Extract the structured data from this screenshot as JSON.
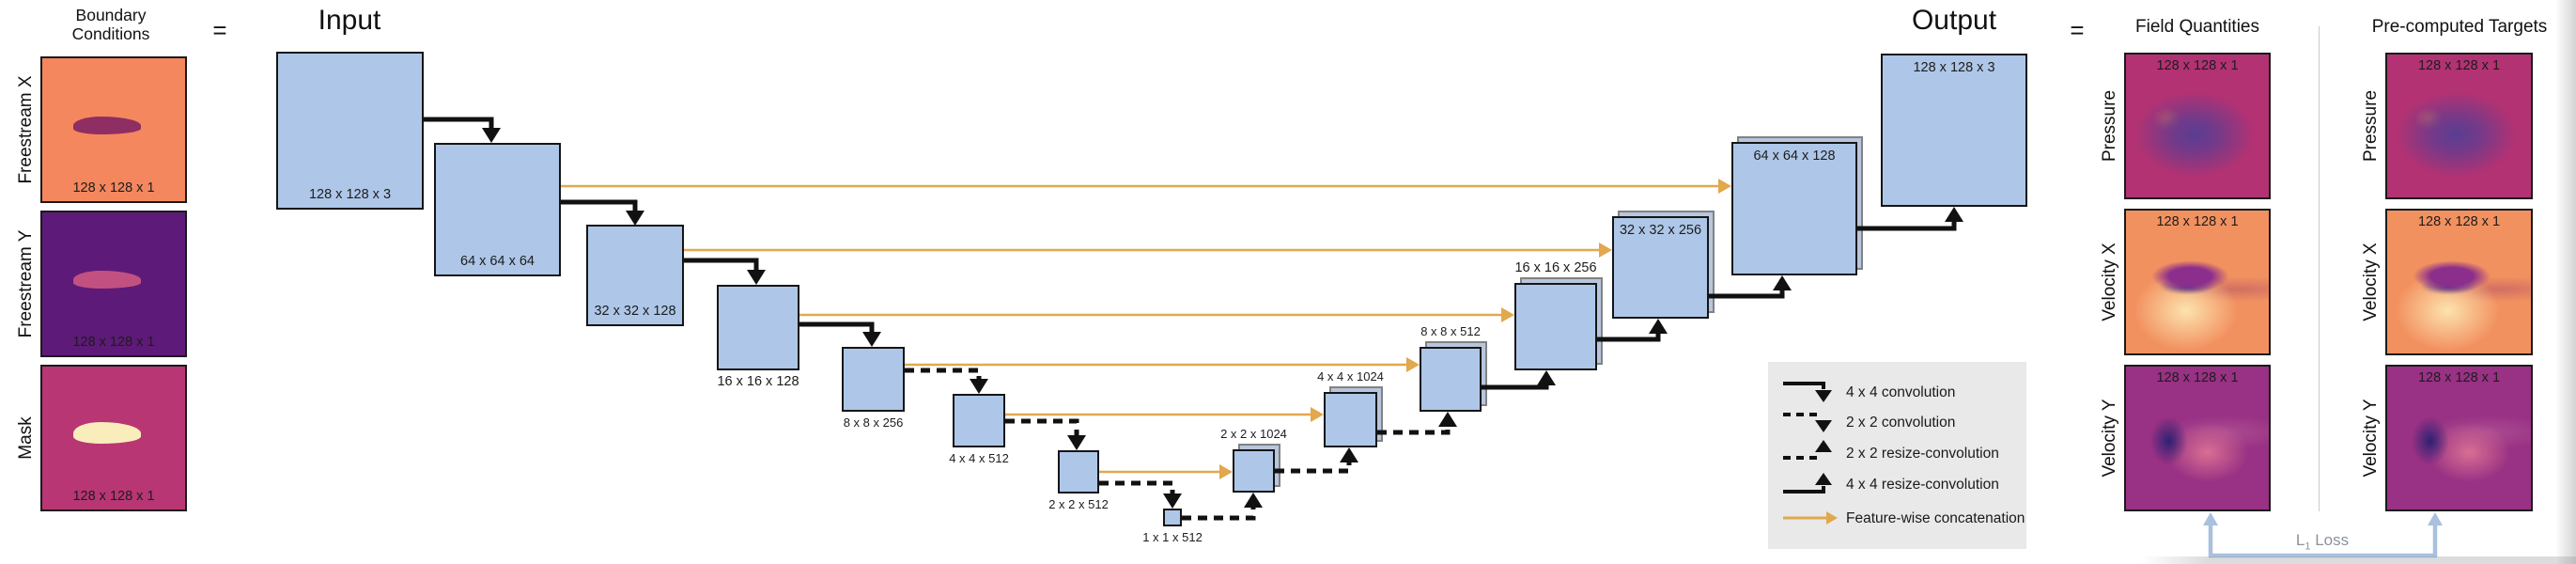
{
  "colors": {
    "box_fill": "#aec7e8",
    "box_border": "#151515",
    "box_back_fill": "#b7c6dc",
    "box_back_border": "#828282",
    "arrow_black": "#111111",
    "concat_orange": "#e1a84e",
    "legend_bg": "#e9e9e9",
    "loss_blue": "#a9c0de",
    "loss_text": "#8b929e",
    "separator": "#c9c9c9"
  },
  "left_column": {
    "header_line1": "Boundary",
    "header_line2": "Conditions",
    "equals": "=",
    "rows": [
      {
        "label": "Freestream X",
        "dim": "128 x 128 x 1",
        "bg": "#f4875e",
        "foil": "#8e2e63"
      },
      {
        "label": "Freestream Y",
        "dim": "128 x 128 x 1",
        "bg": "#5e1a78",
        "foil": "#c25181"
      },
      {
        "label": "Mask",
        "dim": "128 x 128 x 1",
        "bg": "#b83673",
        "foil": "#f8edbb"
      }
    ]
  },
  "unet": {
    "input_title": "Input",
    "output_title": "Output",
    "boxes": [
      {
        "dim": "128 x 128 x 3"
      },
      {
        "dim": "64 x 64 x 64"
      },
      {
        "dim": "32 x 32 x 128"
      },
      {
        "dim": "16 x 16 x 128"
      },
      {
        "dim": "8 x 8 x 256"
      },
      {
        "dim": "4 x 4 x 512"
      },
      {
        "dim": "2 x 2 x 512"
      },
      {
        "dim": "1 x 1 x 512"
      },
      {
        "dim": "2 x 2 x 1024"
      },
      {
        "dim": "4 x 4 x 1024"
      },
      {
        "dim": "8 x 8 x 512"
      },
      {
        "dim": "16 x 16 x 256"
      },
      {
        "dim": "32 x 32 x 256"
      },
      {
        "dim": "64 x 64 x 128"
      },
      {
        "dim": "128 x 128 x 3"
      }
    ],
    "connections": [
      "4 x 4 convolution",
      "4 x 4 convolution",
      "4 x 4 convolution",
      "4 x 4 convolution",
      "2 x 2 convolution",
      "2 x 2 convolution",
      "2 x 2 convolution",
      "2 x 2 resize-convolution",
      "2 x 2 resize-convolution",
      "2 x 2 resize-convolution",
      "4 x 4 resize-convolution",
      "4 x 4 resize-convolution",
      "4 x 4 resize-convolution",
      "4 x 4 resize-convolution"
    ],
    "concatenations": 6
  },
  "legend": {
    "items": [
      {
        "type": "conv-4x4",
        "label": "4 x 4 convolution"
      },
      {
        "type": "conv-2x2",
        "label": "2 x 2 convolution"
      },
      {
        "type": "resize-conv-2x2",
        "label": "2 x 2 resize-convolution"
      },
      {
        "type": "resize-conv-4x4",
        "label": "4 x 4 resize-convolution"
      },
      {
        "type": "concat",
        "label": "Feature-wise concatenation"
      }
    ]
  },
  "right": {
    "field_header": "Field Quantities",
    "target_header": "Pre-computed Targets",
    "equals": "=",
    "loss": {
      "base": "L",
      "sub": "1",
      "rest": " Loss"
    },
    "rows": [
      {
        "label": "Pressure",
        "dim": "128 x 128 x 1",
        "colors": {
          "bg": "#b33273",
          "blob": "#5a3d92",
          "spot": "#d0625f"
        }
      },
      {
        "label": "Velocity X",
        "dim": "128 x 128 x 1",
        "colors": {
          "bg": "#f29160",
          "foil": "#8b2e8c",
          "under": "#41308a",
          "glow": "#fce3ae"
        }
      },
      {
        "label": "Velocity Y",
        "dim": "128 x 128 x 1",
        "colors": {
          "bg": "#993184",
          "spot": "#2e2173",
          "glow": "#d96f93"
        }
      }
    ]
  }
}
